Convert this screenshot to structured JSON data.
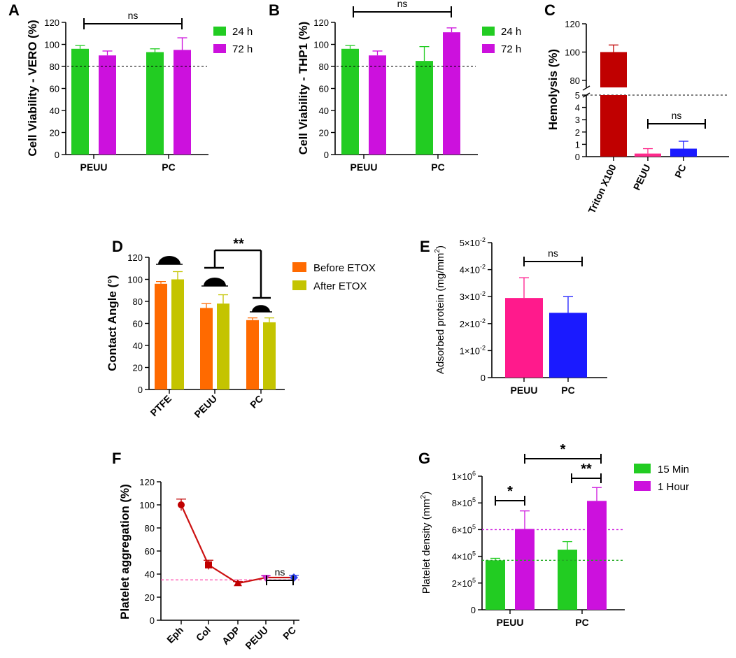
{
  "chart_data": [
    {
      "panel": "A",
      "type": "bar",
      "ylabel": "Cell Viability - VERO (%)",
      "categories": [
        "PEUU",
        "PC"
      ],
      "ylim": [
        0,
        120
      ],
      "yticks": [
        "0",
        "20",
        "40",
        "60",
        "80",
        "100",
        "120"
      ],
      "reference_line": 80,
      "series": [
        {
          "name": "24 h",
          "color": "#22cc22",
          "values": [
            96,
            93
          ],
          "errors": [
            3,
            3
          ]
        },
        {
          "name": "72 h",
          "color": "#cc11dd",
          "values": [
            90,
            95
          ],
          "errors": [
            4,
            11
          ]
        }
      ],
      "annotations": [
        {
          "text": "ns",
          "from": "PEUU",
          "to": "PC"
        }
      ]
    },
    {
      "panel": "B",
      "type": "bar",
      "ylabel": "Cell Viability - THP1 (%)",
      "categories": [
        "PEUU",
        "PC"
      ],
      "ylim": [
        0,
        120
      ],
      "yticks": [
        "0",
        "20",
        "40",
        "60",
        "80",
        "100",
        "120"
      ],
      "reference_line": 80,
      "series": [
        {
          "name": "24 h",
          "color": "#22cc22",
          "values": [
            96,
            85
          ],
          "errors": [
            3,
            13
          ]
        },
        {
          "name": "72 h",
          "color": "#cc11dd",
          "values": [
            90,
            111
          ],
          "errors": [
            4,
            4
          ]
        }
      ],
      "annotations": [
        {
          "text": "ns",
          "from": "PEUU",
          "to": "PC"
        }
      ]
    },
    {
      "panel": "C",
      "type": "bar",
      "ylabel": "Hemolysis (%)",
      "categories": [
        "Triton X100",
        "PEUU",
        "PC"
      ],
      "values": [
        100,
        0.25,
        0.65
      ],
      "errors": [
        5,
        0.4,
        0.6
      ],
      "colors": [
        "#c00000",
        "#ff2a8c",
        "#1a1aff"
      ],
      "axis_break": {
        "lower": [
          0,
          5
        ],
        "upper": [
          75,
          120
        ]
      },
      "yticks_lower": [
        "0",
        "1",
        "2",
        "3",
        "4",
        "5"
      ],
      "yticks_upper": [
        "80",
        "100",
        "120"
      ],
      "reference_line": 5,
      "annotations": [
        {
          "text": "ns",
          "from": "PEUU",
          "to": "PC"
        }
      ]
    },
    {
      "panel": "D",
      "type": "bar",
      "ylabel": "Contact Angle (°)",
      "categories": [
        "PTFE",
        "PEUU",
        "PC"
      ],
      "ylim": [
        0,
        120
      ],
      "yticks": [
        "0",
        "20",
        "40",
        "60",
        "80",
        "100",
        "120"
      ],
      "series": [
        {
          "name": "Before ETOX",
          "color": "#ff6a00",
          "values": [
            96,
            74,
            63
          ],
          "errors": [
            2,
            4,
            2
          ]
        },
        {
          "name": "After ETOX",
          "color": "#c4c400",
          "values": [
            100,
            78,
            61
          ],
          "errors": [
            7,
            8,
            4
          ]
        }
      ],
      "annotations": [
        {
          "text": "**",
          "from": "PEUU",
          "to": "PC"
        }
      ]
    },
    {
      "panel": "E",
      "type": "bar",
      "ylabel": "Adsorbed protein (mg/mm",
      "ylabel_sup": "2",
      "ylabel_end": ")",
      "categories": [
        "PEUU",
        "PC"
      ],
      "values": [
        0.0295,
        0.024
      ],
      "errors": [
        0.0075,
        0.006
      ],
      "colors": [
        "#ff1a8c",
        "#1a1aff"
      ],
      "ylim": [
        0,
        0.05
      ],
      "yticks": [
        {
          "base": "0",
          "exp": ""
        },
        {
          "base": "1×10",
          "exp": "-2"
        },
        {
          "base": "2×10",
          "exp": "-2"
        },
        {
          "base": "3×10",
          "exp": "-2"
        },
        {
          "base": "4×10",
          "exp": "-2"
        },
        {
          "base": "5×10",
          "exp": "-2"
        }
      ],
      "annotations": [
        {
          "text": "ns",
          "from": "PEUU",
          "to": "PC"
        }
      ]
    },
    {
      "panel": "F",
      "type": "line",
      "ylabel": "Platelet aggregation (%)",
      "categories": [
        "Eph",
        "Col",
        "ADP",
        "PEUU",
        "PC"
      ],
      "values": [
        100,
        48,
        32,
        37,
        37
      ],
      "errors": [
        5,
        4,
        1.5,
        1.5,
        2
      ],
      "markers": [
        "circle",
        "square",
        "triangle",
        "triangle-down",
        "diamond"
      ],
      "marker_colors": [
        "#c00000",
        "#c00000",
        "#c00000",
        "#cc33cc",
        "#3344ee"
      ],
      "line_color": "#cc1111",
      "ylim": [
        0,
        120
      ],
      "yticks": [
        "0",
        "20",
        "40",
        "60",
        "80",
        "100",
        "120"
      ],
      "reference_line": 35,
      "annotations": [
        {
          "text": "ns",
          "from": "PEUU",
          "to": "PC"
        }
      ]
    },
    {
      "panel": "G",
      "type": "bar",
      "ylabel": "Platelet density (mm",
      "ylabel_sup": "2",
      "ylabel_end": ")",
      "categories": [
        "PEUU",
        "PC"
      ],
      "ylim": [
        0,
        1000000
      ],
      "yticks": [
        {
          "base": "0",
          "exp": ""
        },
        {
          "base": "2×10",
          "exp": "5"
        },
        {
          "base": "4×10",
          "exp": "5"
        },
        {
          "base": "6×10",
          "exp": "5"
        },
        {
          "base": "8×10",
          "exp": "5"
        },
        {
          "base": "1×10",
          "exp": "6"
        }
      ],
      "reference_lines": [
        {
          "value": 370000,
          "color": "#22aa22"
        },
        {
          "value": 600000,
          "color": "#cc11dd"
        }
      ],
      "series": [
        {
          "name": "15 Min",
          "color": "#22cc22",
          "values": [
            370000,
            450000
          ],
          "errors": [
            15000,
            60000
          ]
        },
        {
          "name": "1 Hour",
          "color": "#cc11dd",
          "values": [
            605000,
            815000
          ],
          "errors": [
            135000,
            100000
          ]
        }
      ],
      "annotations": [
        {
          "text": "*",
          "group": "PEUU"
        },
        {
          "text": "**",
          "group": "PC"
        },
        {
          "text": "*",
          "from": "PEUU 1 Hour",
          "to": "PC 1 Hour"
        }
      ]
    }
  ]
}
